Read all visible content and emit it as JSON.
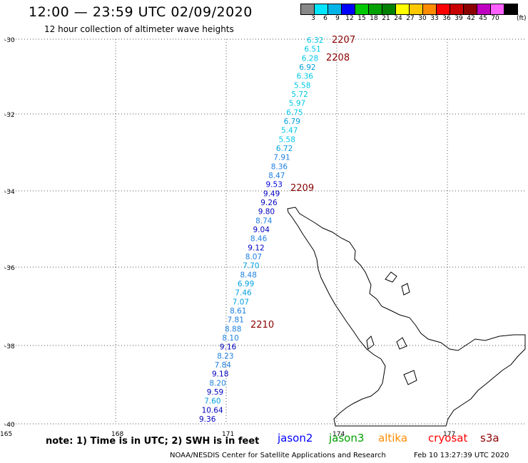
{
  "header": {
    "title": "12:00 — 23:59 UTC 02/09/2020",
    "subtitle": "12 hour collection of altimeter wave heights"
  },
  "legend": {
    "labels": [
      "3",
      "6",
      "9",
      "12",
      "15",
      "18",
      "21",
      "24",
      "27",
      "30",
      "33",
      "36",
      "39",
      "42",
      "45",
      "70",
      "(ft)"
    ],
    "colors": [
      "#888888",
      "#00e5ff",
      "#00b4e8",
      "#0000ff",
      "#00c800",
      "#00a000",
      "#008000",
      "#ffff00",
      "#ffc800",
      "#ff8c00",
      "#ff0000",
      "#c80000",
      "#8b0000",
      "#c000c0",
      "#ff60ff",
      "#000000"
    ]
  },
  "axes": {
    "lat_labels": [
      "-30",
      "-32",
      "-34",
      "-36",
      "-38",
      "-40"
    ],
    "lon_labels": [
      "165",
      "168",
      "171",
      "174",
      "177"
    ]
  },
  "track": {
    "points": [
      {
        "v": "6.32",
        "c": "#00c8e8"
      },
      {
        "v": "6.51",
        "c": "#00c8e8"
      },
      {
        "v": "6.28",
        "c": "#00c8e8"
      },
      {
        "v": "6.92",
        "c": "#00a0e0"
      },
      {
        "v": "6.36",
        "c": "#00c8e8"
      },
      {
        "v": "5.58",
        "c": "#00c8e8"
      },
      {
        "v": "5.72",
        "c": "#00c8e8"
      },
      {
        "v": "5.97",
        "c": "#00c8e8"
      },
      {
        "v": "6.75",
        "c": "#00c8e8"
      },
      {
        "v": "6.79",
        "c": "#00a0e0"
      },
      {
        "v": "5.47",
        "c": "#00c8e8"
      },
      {
        "v": "5.58",
        "c": "#00c8e8"
      },
      {
        "v": "6.72",
        "c": "#00a0e0"
      },
      {
        "v": "7.91",
        "c": "#2080e0"
      },
      {
        "v": "8.36",
        "c": "#2080e0"
      },
      {
        "v": "8.47",
        "c": "#2080e0"
      },
      {
        "v": "9.53",
        "c": "#0000d8"
      },
      {
        "v": "9.49",
        "c": "#0000c0"
      },
      {
        "v": "9.26",
        "c": "#0000c0"
      },
      {
        "v": "9.80",
        "c": "#0000c0"
      },
      {
        "v": "8.74",
        "c": "#2080e0"
      },
      {
        "v": "9.04",
        "c": "#0000c0"
      },
      {
        "v": "8.46",
        "c": "#2080e0"
      },
      {
        "v": "9.12",
        "c": "#0000c0"
      },
      {
        "v": "8.07",
        "c": "#2080e0"
      },
      {
        "v": "7.70",
        "c": "#00a0e0"
      },
      {
        "v": "8.48",
        "c": "#2080e0"
      },
      {
        "v": "6.99",
        "c": "#00a0e0"
      },
      {
        "v": "7.46",
        "c": "#00a0e0"
      },
      {
        "v": "7.07",
        "c": "#00a0e0"
      },
      {
        "v": "8.61",
        "c": "#2080e0"
      },
      {
        "v": "7.81",
        "c": "#2080e0"
      },
      {
        "v": "8.88",
        "c": "#2080e0"
      },
      {
        "v": "8.10",
        "c": "#2080e0"
      },
      {
        "v": "9.16",
        "c": "#0000c0"
      },
      {
        "v": "8.23",
        "c": "#2080e0"
      },
      {
        "v": "7.84",
        "c": "#2080e0"
      },
      {
        "v": "9.18",
        "c": "#0000c0"
      },
      {
        "v": "8.20",
        "c": "#2080e0"
      },
      {
        "v": "9.59",
        "c": "#0000c0"
      },
      {
        "v": "7.60",
        "c": "#00a0e0"
      },
      {
        "v": "10.64",
        "c": "#0000c0"
      },
      {
        "v": "9.36",
        "c": "#0000c0"
      }
    ],
    "times": [
      "2207",
      "2208",
      "2209",
      "2210"
    ]
  },
  "footer": {
    "note": "note:  1) Time is in UTC;  2) SWH is in feet",
    "satellites": [
      {
        "name": "jason2",
        "color": "#0000ff"
      },
      {
        "name": "jason3",
        "color": "#00a000"
      },
      {
        "name": "altika",
        "color": "#ff8c00"
      },
      {
        "name": "cryosat",
        "color": "#ff0000"
      },
      {
        "name": "s3a",
        "color": "#8b0000"
      }
    ],
    "credit": "NOAA/NESDIS Center for Satellite Applications and Research",
    "generated": "Feb 10 13:27:39 UTC 2020"
  }
}
